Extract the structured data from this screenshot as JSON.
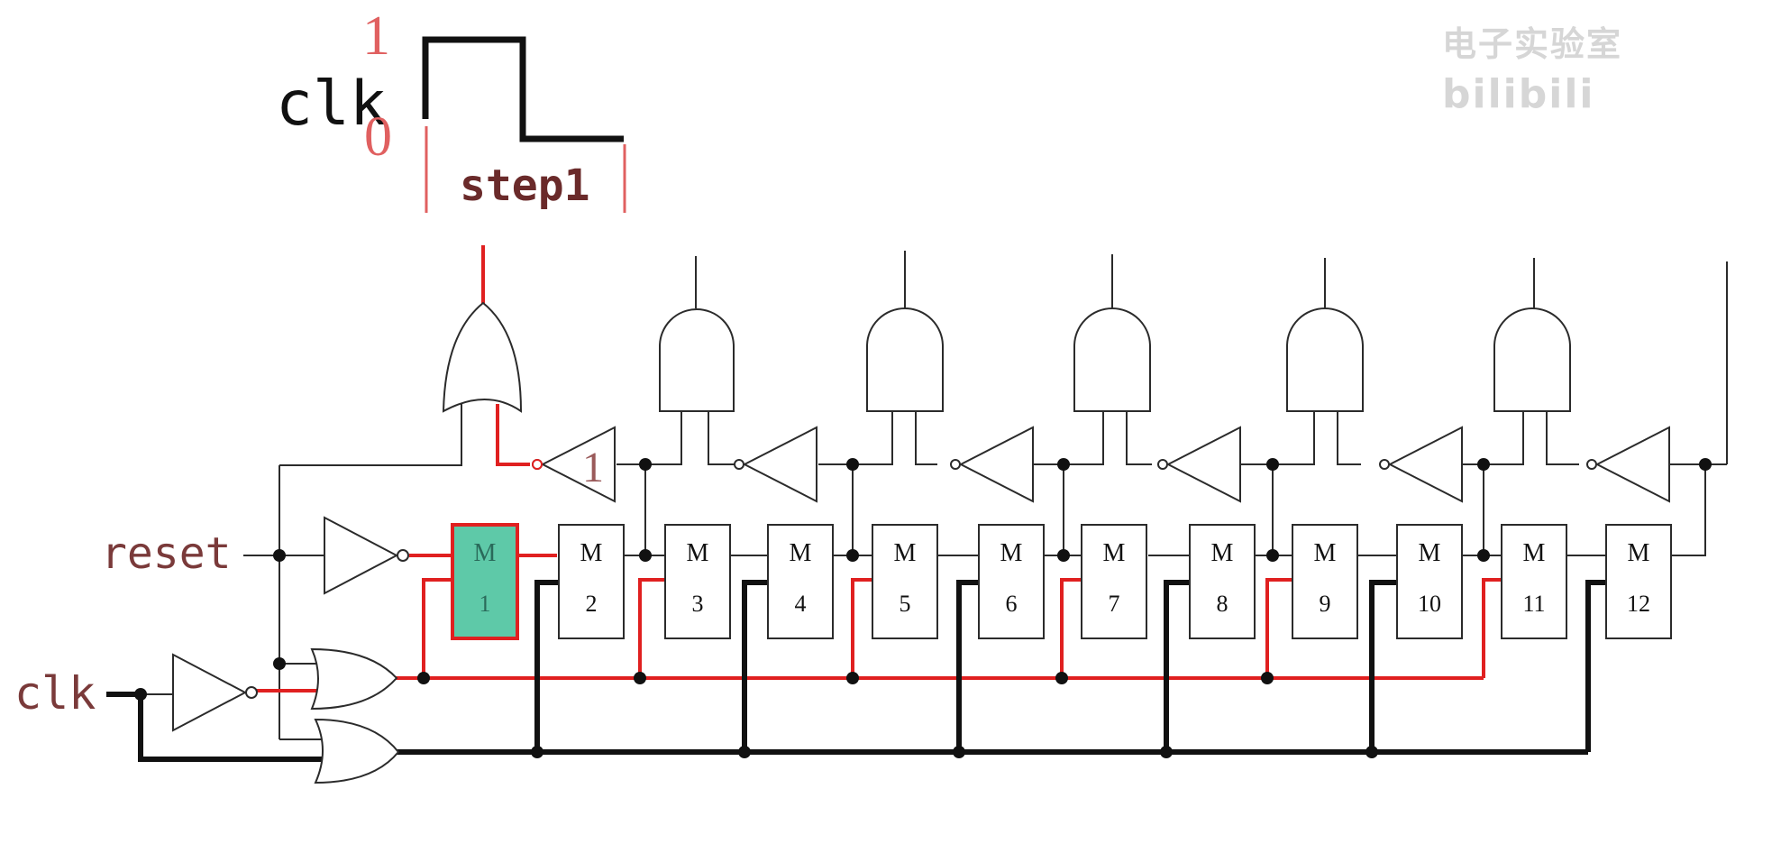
{
  "watermark": {
    "text": "bilibili",
    "prefix": "电子实验室"
  },
  "timing": {
    "signal_label": "clk",
    "high_label": "1",
    "low_label": "0",
    "step_label": "step1"
  },
  "inputs": {
    "reset_label": "reset",
    "clk_label": "clk"
  },
  "inverter_value_label": "1",
  "modules": [
    {
      "top": "M",
      "num": "1",
      "active": true
    },
    {
      "top": "M",
      "num": "2",
      "active": false
    },
    {
      "top": "M",
      "num": "3",
      "active": false
    },
    {
      "top": "M",
      "num": "4",
      "active": false
    },
    {
      "top": "M",
      "num": "5",
      "active": false
    },
    {
      "top": "M",
      "num": "6",
      "active": false
    },
    {
      "top": "M",
      "num": "7",
      "active": false
    },
    {
      "top": "M",
      "num": "8",
      "active": false
    },
    {
      "top": "M",
      "num": "9",
      "active": false
    },
    {
      "top": "M",
      "num": "10",
      "active": false
    },
    {
      "top": "M",
      "num": "11",
      "active": false
    },
    {
      "top": "M",
      "num": "12",
      "active": false
    }
  ],
  "colors": {
    "wire": "#2b2b2b",
    "active_wire": "#e02020",
    "bus": "#111111",
    "label_brown": "#7a3a3a",
    "timing_red": "#e06060",
    "active_module_fill": "#5ec9a8",
    "active_module_border": "#e02020"
  }
}
